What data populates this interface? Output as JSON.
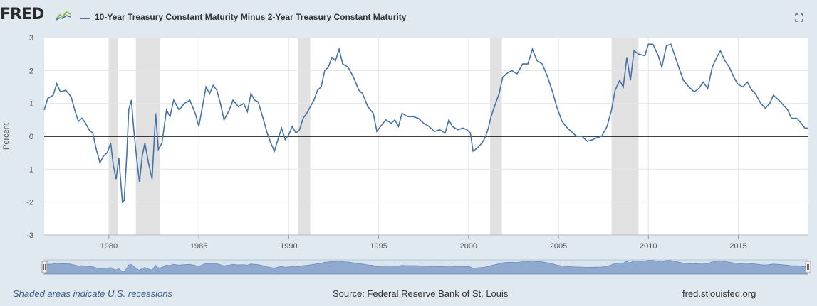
{
  "header": {
    "logo_text": "FRED",
    "series_title": "10-Year Treasury Constant Maturity Minus 2-Year Treasury Constant Maturity",
    "series_color": "#4572a7"
  },
  "footer": {
    "recession_note": "Shaded areas indicate U.S. recessions",
    "source": "Source: Federal Reserve Bank of St. Louis",
    "site": "fred.stlouisfed.org"
  },
  "chart_data": {
    "type": "line",
    "ylabel": "Percent",
    "xlabel": "",
    "ylim": [
      -3,
      3
    ],
    "xlim": [
      1976.4,
      2018.9
    ],
    "xticks": [
      1980,
      1985,
      1990,
      1995,
      2000,
      2005,
      2010,
      2015
    ],
    "yticks": [
      3,
      2,
      1,
      0,
      -1,
      -2,
      -3
    ],
    "recessions": [
      [
        1980.0,
        1980.5
      ],
      [
        1981.5,
        1982.85
      ],
      [
        1990.5,
        1991.2
      ],
      [
        2001.2,
        2001.85
      ],
      [
        2007.95,
        2009.45
      ]
    ],
    "series": [
      {
        "color": "#4572a7",
        "points": [
          [
            1976.4,
            0.8
          ],
          [
            1976.6,
            1.15
          ],
          [
            1976.9,
            1.25
          ],
          [
            1977.1,
            1.6
          ],
          [
            1977.3,
            1.35
          ],
          [
            1977.6,
            1.4
          ],
          [
            1977.9,
            1.2
          ],
          [
            1978.1,
            0.8
          ],
          [
            1978.3,
            0.45
          ],
          [
            1978.5,
            0.55
          ],
          [
            1978.7,
            0.4
          ],
          [
            1978.9,
            0.2
          ],
          [
            1979.1,
            0.1
          ],
          [
            1979.3,
            -0.4
          ],
          [
            1979.5,
            -0.8
          ],
          [
            1979.7,
            -0.6
          ],
          [
            1979.9,
            -0.5
          ],
          [
            1980.1,
            -0.2
          ],
          [
            1980.25,
            -0.9
          ],
          [
            1980.4,
            -1.3
          ],
          [
            1980.55,
            -0.65
          ],
          [
            1980.75,
            -2.0
          ],
          [
            1980.85,
            -1.95
          ],
          [
            1981.0,
            -0.5
          ],
          [
            1981.1,
            0.8
          ],
          [
            1981.25,
            1.1
          ],
          [
            1981.4,
            0.1
          ],
          [
            1981.55,
            -0.7
          ],
          [
            1981.7,
            -1.4
          ],
          [
            1981.85,
            -0.6
          ],
          [
            1982.0,
            -0.2
          ],
          [
            1982.2,
            -0.8
          ],
          [
            1982.4,
            -1.3
          ],
          [
            1982.6,
            0.7
          ],
          [
            1982.75,
            -0.4
          ],
          [
            1982.95,
            -0.2
          ],
          [
            1983.2,
            0.8
          ],
          [
            1983.4,
            0.6
          ],
          [
            1983.6,
            1.1
          ],
          [
            1983.9,
            0.8
          ],
          [
            1984.2,
            1.0
          ],
          [
            1984.5,
            1.1
          ],
          [
            1984.8,
            0.7
          ],
          [
            1985.0,
            0.3
          ],
          [
            1985.2,
            0.9
          ],
          [
            1985.4,
            1.5
          ],
          [
            1985.6,
            1.3
          ],
          [
            1985.8,
            1.55
          ],
          [
            1986.0,
            1.4
          ],
          [
            1986.2,
            1.0
          ],
          [
            1986.4,
            0.5
          ],
          [
            1986.7,
            0.8
          ],
          [
            1986.9,
            1.1
          ],
          [
            1987.2,
            0.9
          ],
          [
            1987.5,
            1.0
          ],
          [
            1987.7,
            0.75
          ],
          [
            1987.9,
            1.3
          ],
          [
            1988.1,
            1.1
          ],
          [
            1988.3,
            1.05
          ],
          [
            1988.6,
            0.5
          ],
          [
            1988.8,
            0.1
          ],
          [
            1989.0,
            -0.2
          ],
          [
            1989.2,
            -0.45
          ],
          [
            1989.4,
            -0.1
          ],
          [
            1989.6,
            0.25
          ],
          [
            1989.8,
            -0.1
          ],
          [
            1990.0,
            0.05
          ],
          [
            1990.2,
            0.3
          ],
          [
            1990.4,
            0.1
          ],
          [
            1990.6,
            0.2
          ],
          [
            1990.8,
            0.55
          ],
          [
            1991.0,
            0.7
          ],
          [
            1991.2,
            0.9
          ],
          [
            1991.4,
            1.1
          ],
          [
            1991.6,
            1.4
          ],
          [
            1991.8,
            1.5
          ],
          [
            1992.0,
            2.0
          ],
          [
            1992.2,
            2.1
          ],
          [
            1992.4,
            2.4
          ],
          [
            1992.6,
            2.3
          ],
          [
            1992.8,
            2.65
          ],
          [
            1993.0,
            2.2
          ],
          [
            1993.3,
            2.1
          ],
          [
            1993.6,
            1.8
          ],
          [
            1993.9,
            1.4
          ],
          [
            1994.1,
            1.3
          ],
          [
            1994.4,
            0.9
          ],
          [
            1994.7,
            0.7
          ],
          [
            1994.9,
            0.15
          ],
          [
            1995.1,
            0.3
          ],
          [
            1995.4,
            0.5
          ],
          [
            1995.7,
            0.4
          ],
          [
            1995.9,
            0.5
          ],
          [
            1996.1,
            0.3
          ],
          [
            1996.3,
            0.7
          ],
          [
            1996.6,
            0.6
          ],
          [
            1996.9,
            0.6
          ],
          [
            1997.2,
            0.55
          ],
          [
            1997.5,
            0.4
          ],
          [
            1997.8,
            0.3
          ],
          [
            1998.1,
            0.15
          ],
          [
            1998.4,
            0.2
          ],
          [
            1998.7,
            0.1
          ],
          [
            1998.9,
            0.5
          ],
          [
            1999.1,
            0.3
          ],
          [
            1999.4,
            0.2
          ],
          [
            1999.7,
            0.25
          ],
          [
            1999.9,
            0.2
          ],
          [
            2000.1,
            0.1
          ],
          [
            2000.25,
            -0.45
          ],
          [
            2000.5,
            -0.35
          ],
          [
            2000.75,
            -0.2
          ],
          [
            2000.95,
            0.0
          ],
          [
            2001.1,
            0.25
          ],
          [
            2001.25,
            0.6
          ],
          [
            2001.5,
            1.0
          ],
          [
            2001.7,
            1.3
          ],
          [
            2001.9,
            1.8
          ],
          [
            2002.1,
            1.9
          ],
          [
            2002.4,
            2.0
          ],
          [
            2002.7,
            1.9
          ],
          [
            2003.0,
            2.2
          ],
          [
            2003.3,
            2.2
          ],
          [
            2003.55,
            2.65
          ],
          [
            2003.8,
            2.3
          ],
          [
            2004.1,
            2.2
          ],
          [
            2004.4,
            1.8
          ],
          [
            2004.7,
            1.3
          ],
          [
            2004.9,
            0.9
          ],
          [
            2005.2,
            0.45
          ],
          [
            2005.5,
            0.25
          ],
          [
            2005.8,
            0.1
          ],
          [
            2006.0,
            0.0
          ],
          [
            2006.3,
            0.0
          ],
          [
            2006.6,
            -0.15
          ],
          [
            2006.9,
            -0.1
          ],
          [
            2007.1,
            -0.05
          ],
          [
            2007.4,
            0.0
          ],
          [
            2007.7,
            0.3
          ],
          [
            2007.95,
            0.8
          ],
          [
            2008.15,
            1.4
          ],
          [
            2008.4,
            1.7
          ],
          [
            2008.6,
            1.5
          ],
          [
            2008.8,
            2.4
          ],
          [
            2009.0,
            1.7
          ],
          [
            2009.2,
            2.6
          ],
          [
            2009.45,
            2.5
          ],
          [
            2009.8,
            2.45
          ],
          [
            2010.0,
            2.8
          ],
          [
            2010.25,
            2.8
          ],
          [
            2010.55,
            2.45
          ],
          [
            2010.75,
            2.1
          ],
          [
            2011.0,
            2.75
          ],
          [
            2011.25,
            2.8
          ],
          [
            2011.5,
            2.4
          ],
          [
            2011.75,
            2.0
          ],
          [
            2011.95,
            1.7
          ],
          [
            2012.25,
            1.5
          ],
          [
            2012.55,
            1.35
          ],
          [
            2012.8,
            1.45
          ],
          [
            2013.05,
            1.65
          ],
          [
            2013.3,
            1.45
          ],
          [
            2013.55,
            2.1
          ],
          [
            2013.8,
            2.4
          ],
          [
            2014.0,
            2.6
          ],
          [
            2014.25,
            2.3
          ],
          [
            2014.5,
            2.1
          ],
          [
            2014.75,
            1.8
          ],
          [
            2014.95,
            1.6
          ],
          [
            2015.25,
            1.5
          ],
          [
            2015.5,
            1.65
          ],
          [
            2015.75,
            1.4
          ],
          [
            2015.95,
            1.3
          ],
          [
            2016.25,
            1.0
          ],
          [
            2016.5,
            0.85
          ],
          [
            2016.75,
            1.0
          ],
          [
            2016.95,
            1.25
          ],
          [
            2017.25,
            1.1
          ],
          [
            2017.5,
            0.95
          ],
          [
            2017.75,
            0.8
          ],
          [
            2017.95,
            0.55
          ],
          [
            2018.25,
            0.55
          ],
          [
            2018.5,
            0.4
          ],
          [
            2018.7,
            0.25
          ],
          [
            2018.9,
            0.25
          ]
        ]
      }
    ]
  }
}
